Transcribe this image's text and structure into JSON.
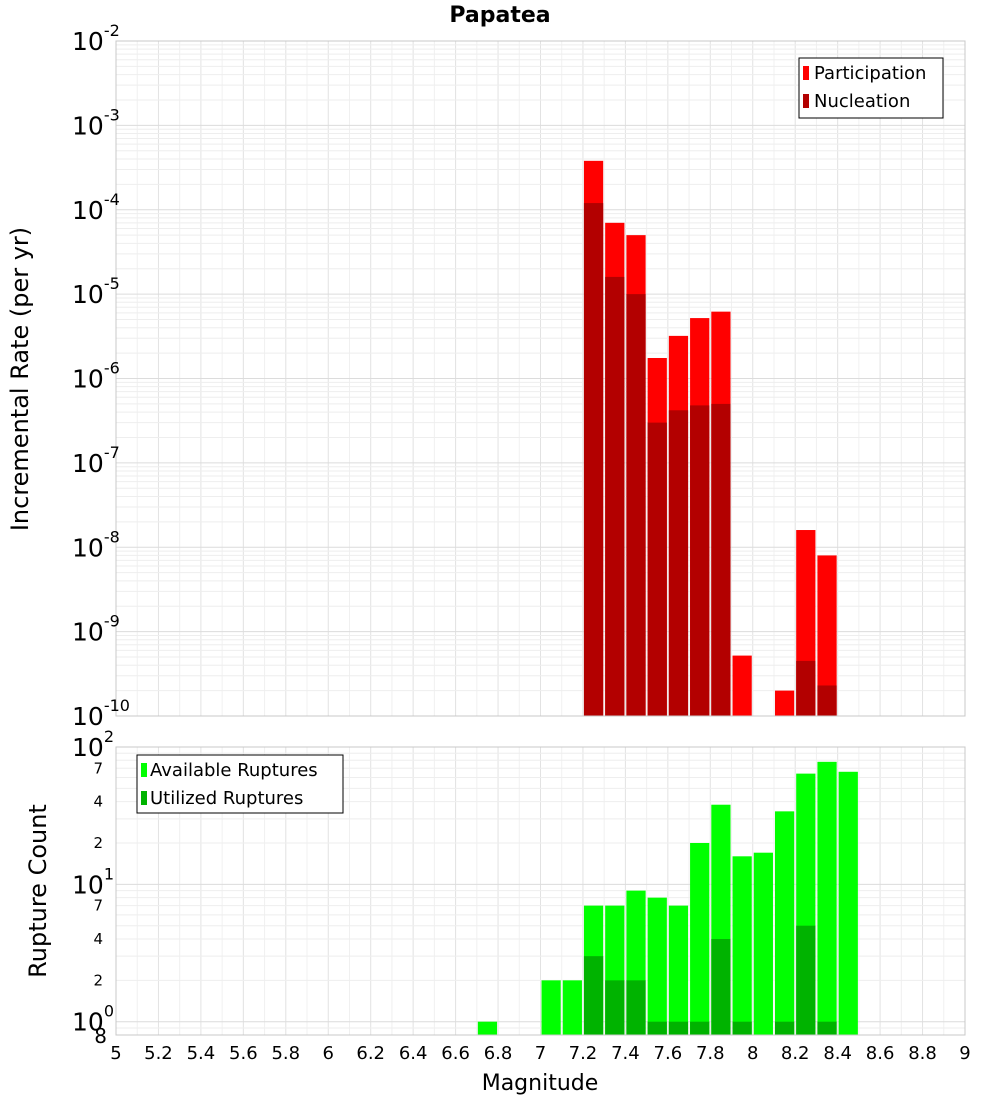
{
  "chart_data": [
    {
      "type": "bar",
      "panel": "top",
      "title": "Papatea",
      "xlabel": "Magnitude",
      "ylabel": "Incremental Rate (per yr)",
      "yscale": "log",
      "ylim": [
        1e-10,
        0.01
      ],
      "xlim": [
        5,
        9
      ],
      "bin_width": 0.1,
      "y_ticks": [
        {
          "base": "10",
          "exp": "-10",
          "value": 1e-10
        },
        {
          "base": "10",
          "exp": "-9",
          "value": 1e-09
        },
        {
          "base": "10",
          "exp": "-8",
          "value": 1e-08
        },
        {
          "base": "10",
          "exp": "-7",
          "value": 1e-07
        },
        {
          "base": "10",
          "exp": "-6",
          "value": 1e-06
        },
        {
          "base": "10",
          "exp": "-5",
          "value": 1e-05
        },
        {
          "base": "10",
          "exp": "-4",
          "value": 0.0001
        },
        {
          "base": "10",
          "exp": "-3",
          "value": 0.001
        },
        {
          "base": "10",
          "exp": "-2",
          "value": 0.01
        }
      ],
      "legend": {
        "position": "top-right",
        "entries": [
          "Participation",
          "Nucleation"
        ]
      },
      "series": [
        {
          "name": "Participation",
          "color": "#ff0000",
          "x": [
            7.25,
            7.35,
            7.45,
            7.55,
            7.65,
            7.75,
            7.85,
            7.95,
            8.15,
            8.25,
            8.35
          ],
          "values": [
            0.00038,
            7e-05,
            5e-05,
            1.75e-06,
            3.2e-06,
            5.2e-06,
            6.2e-06,
            5.2e-10,
            2e-10,
            1.6e-08,
            8e-09
          ]
        },
        {
          "name": "Nucleation",
          "color": "#b30000",
          "x": [
            7.25,
            7.35,
            7.45,
            7.55,
            7.65,
            7.75,
            7.85,
            8.25,
            8.35
          ],
          "values": [
            0.00012,
            1.6e-05,
            1e-05,
            3e-07,
            4.2e-07,
            4.8e-07,
            5e-07,
            4.5e-10,
            2.3e-10
          ]
        }
      ]
    },
    {
      "type": "bar",
      "panel": "bottom",
      "xlabel": "Magnitude",
      "ylabel": "Rupture Count",
      "yscale": "log",
      "ylim": [
        0.8,
        100
      ],
      "xlim": [
        5,
        9
      ],
      "bin_width": 0.1,
      "x_ticks": [
        "5",
        "5.2",
        "5.4",
        "5.6",
        "5.8",
        "6",
        "6.2",
        "6.4",
        "6.6",
        "6.8",
        "7",
        "7.2",
        "7.4",
        "7.6",
        "7.8",
        "8",
        "8.2",
        "8.4",
        "8.6",
        "8.8",
        "9"
      ],
      "y_major_ticks": [
        {
          "base": "10",
          "exp": "0",
          "value": 1
        },
        {
          "base": "10",
          "exp": "1",
          "value": 10
        },
        {
          "base": "10",
          "exp": "2",
          "value": 100
        }
      ],
      "y_minor_ticks": [
        {
          "label": "8",
          "value": 0.8
        },
        {
          "label": "2",
          "value": 2
        },
        {
          "label": "4",
          "value": 4
        },
        {
          "label": "7",
          "value": 7
        },
        {
          "label": "2",
          "value": 20
        },
        {
          "label": "4",
          "value": 40
        },
        {
          "label": "7",
          "value": 70
        }
      ],
      "legend": {
        "position": "top-left",
        "entries": [
          "Available Ruptures",
          "Utilized Ruptures"
        ]
      },
      "series": [
        {
          "name": "Available Ruptures",
          "color": "#00ff00",
          "x": [
            6.75,
            7.05,
            7.15,
            7.25,
            7.35,
            7.45,
            7.55,
            7.65,
            7.75,
            7.85,
            7.95,
            8.05,
            8.15,
            8.25,
            8.35,
            8.45
          ],
          "values": [
            1,
            2,
            2,
            7,
            7,
            9,
            8,
            7,
            20,
            38,
            16,
            17,
            34,
            64,
            78,
            66
          ]
        },
        {
          "name": "Utilized Ruptures",
          "color": "#00b300",
          "x": [
            7.25,
            7.35,
            7.45,
            7.55,
            7.65,
            7.75,
            7.85,
            7.95,
            8.15,
            8.25,
            8.35
          ],
          "values": [
            3,
            2,
            2,
            1,
            1,
            1,
            4,
            1,
            1,
            5,
            1
          ]
        }
      ]
    }
  ]
}
